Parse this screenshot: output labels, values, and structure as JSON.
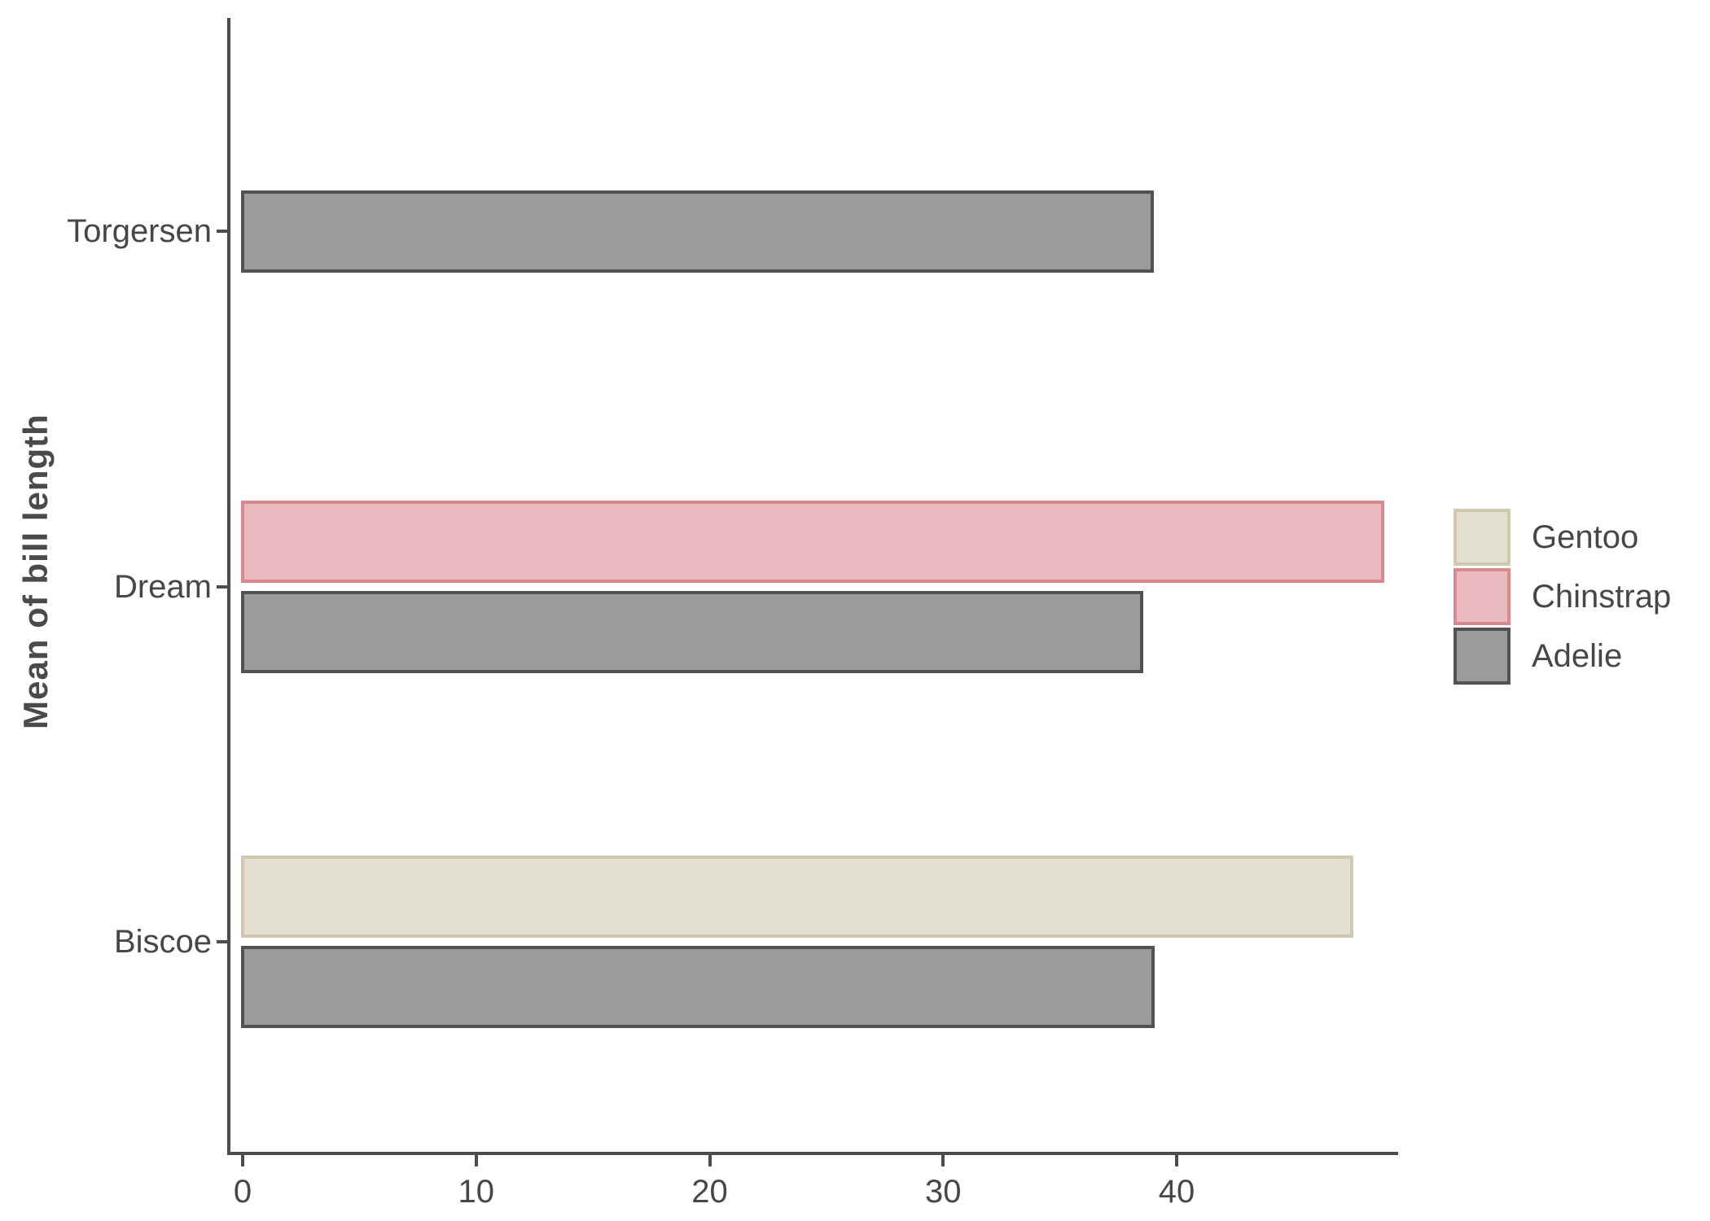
{
  "chart_data": {
    "type": "bar",
    "orientation": "horizontal",
    "title": "",
    "xlabel": "",
    "ylabel": "Mean of bill length",
    "categories": [
      "Torgersen",
      "Dream",
      "Biscoe"
    ],
    "series": [
      {
        "name": "Gentoo",
        "fill": "#e3e0d2",
        "stroke": "#cfc9b2",
        "values": [
          null,
          null,
          47.5
        ]
      },
      {
        "name": "Chinstrap",
        "fill": "#eabbbe",
        "stroke": "#d9898d",
        "values": [
          null,
          48.83,
          null
        ]
      },
      {
        "name": "Adelie",
        "fill": "#9b9b9b",
        "stroke": "#525254",
        "values": [
          38.95,
          38.5,
          38.98
        ]
      }
    ],
    "x_ticks": [
      {
        "label": "0",
        "value": 0
      },
      {
        "label": "10",
        "value": 10
      },
      {
        "label": "20",
        "value": 20
      },
      {
        "label": "30",
        "value": 30
      },
      {
        "label": "40",
        "value": 40
      }
    ],
    "xlim": [
      0,
      49.5
    ],
    "grid": false,
    "legend_position": "right"
  },
  "colors": {
    "axis": "#4d4d4d",
    "text": "#474747",
    "background": "#ffffff"
  }
}
